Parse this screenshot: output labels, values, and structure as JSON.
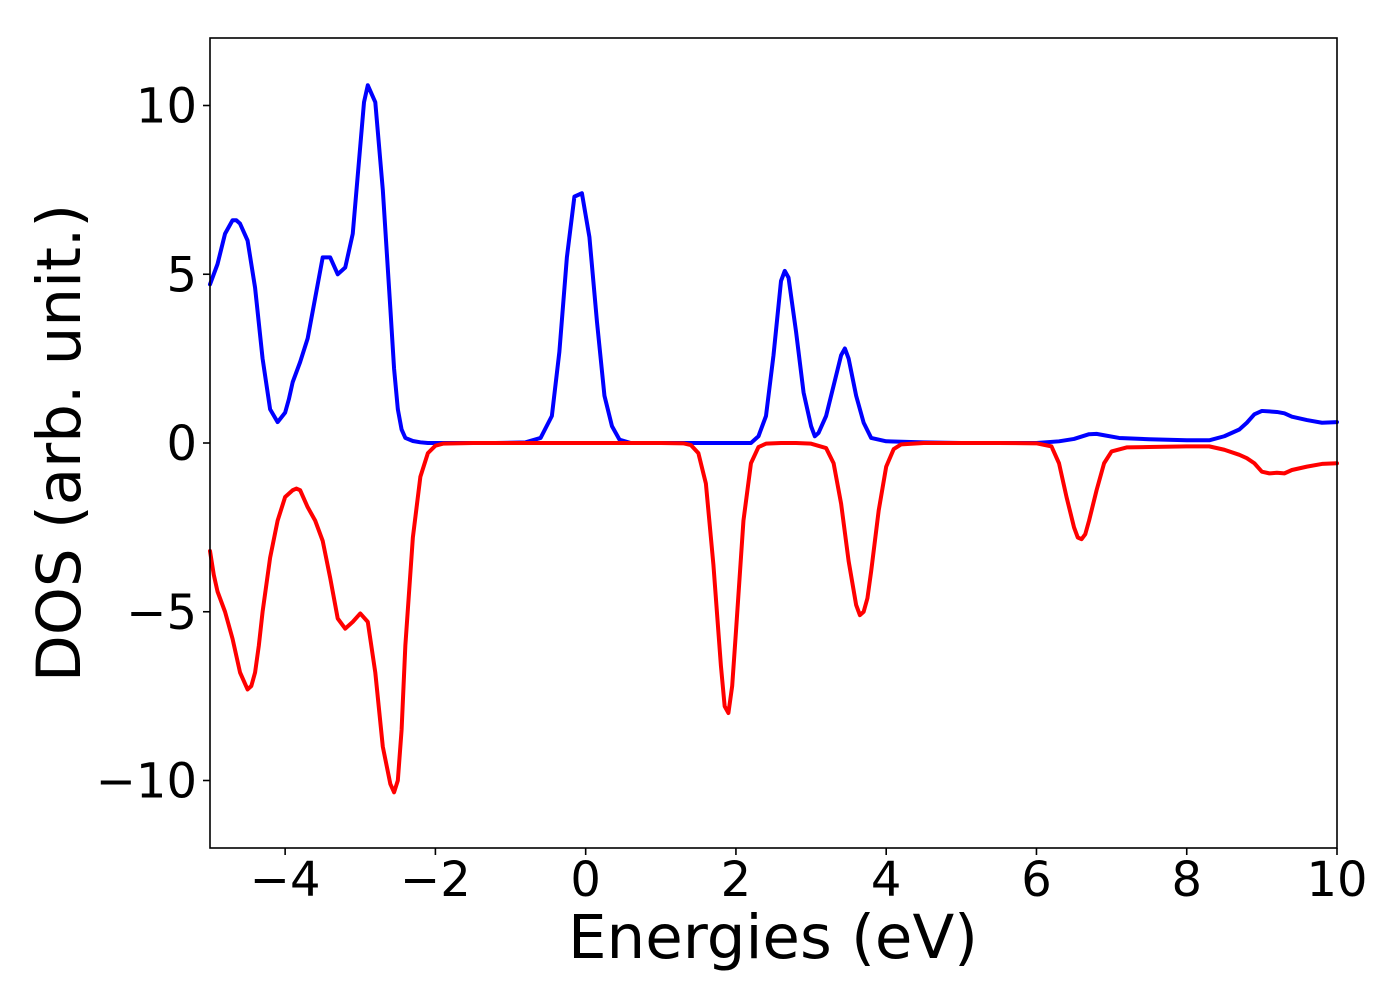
{
  "chart_data": {
    "type": "line",
    "title": "",
    "xlabel": "Energies (eV)",
    "ylabel": "DOS (arb. unit.)",
    "xlim": [
      -5,
      10
    ],
    "ylim": [
      -12,
      12
    ],
    "xticks": [
      -4,
      -2,
      0,
      2,
      4,
      6,
      8,
      10
    ],
    "yticks": [
      -10,
      -5,
      0,
      5,
      10
    ],
    "xtick_labels": [
      "−4",
      "−2",
      "0",
      "2",
      "4",
      "6",
      "8",
      "10"
    ],
    "ytick_labels": [
      "−10",
      "−5",
      "0",
      "5",
      "10"
    ],
    "grid": false,
    "legend": false,
    "series": [
      {
        "color": "#0000ff",
        "x": [
          -5.0,
          -4.9,
          -4.8,
          -4.7,
          -4.65,
          -4.6,
          -4.5,
          -4.4,
          -4.3,
          -4.2,
          -4.1,
          -4.0,
          -3.95,
          -3.9,
          -3.8,
          -3.7,
          -3.6,
          -3.5,
          -3.4,
          -3.3,
          -3.2,
          -3.1,
          -3.0,
          -2.95,
          -2.9,
          -2.8,
          -2.7,
          -2.6,
          -2.55,
          -2.5,
          -2.45,
          -2.4,
          -2.3,
          -2.2,
          -2.1,
          -2.0,
          -1.9,
          -1.7,
          -1.2,
          -0.8,
          -0.6,
          -0.45,
          -0.35,
          -0.25,
          -0.15,
          -0.05,
          0.05,
          0.15,
          0.25,
          0.35,
          0.45,
          0.6,
          0.8,
          1.2,
          1.6,
          2.0,
          2.2,
          2.3,
          2.4,
          2.5,
          2.6,
          2.65,
          2.7,
          2.8,
          2.9,
          3.0,
          3.05,
          3.1,
          3.2,
          3.3,
          3.4,
          3.45,
          3.5,
          3.6,
          3.7,
          3.8,
          4.0,
          4.5,
          5.0,
          5.5,
          6.0,
          6.3,
          6.5,
          6.7,
          6.8,
          6.9,
          7.1,
          7.5,
          8.0,
          8.3,
          8.5,
          8.7,
          8.8,
          8.9,
          9.0,
          9.2,
          9.3,
          9.4,
          9.6,
          9.8,
          10.0
        ],
        "y": [
          4.7,
          5.3,
          6.2,
          6.6,
          6.6,
          6.5,
          6.0,
          4.6,
          2.5,
          1.0,
          0.62,
          0.9,
          1.3,
          1.8,
          2.4,
          3.1,
          4.3,
          5.5,
          5.5,
          5.0,
          5.2,
          6.2,
          8.8,
          10.1,
          10.6,
          10.1,
          7.5,
          4.0,
          2.2,
          1.0,
          0.4,
          0.15,
          0.06,
          0.02,
          0.0,
          0.0,
          0.0,
          0.0,
          0.0,
          0.02,
          0.15,
          0.8,
          2.7,
          5.5,
          7.3,
          7.4,
          6.1,
          3.6,
          1.4,
          0.5,
          0.1,
          0.0,
          0.0,
          0.0,
          0.0,
          0.0,
          0.0,
          0.2,
          0.8,
          2.6,
          4.8,
          5.1,
          4.9,
          3.3,
          1.5,
          0.5,
          0.2,
          0.3,
          0.8,
          1.7,
          2.6,
          2.8,
          2.5,
          1.4,
          0.6,
          0.15,
          0.05,
          0.02,
          0.0,
          0.0,
          0.0,
          0.05,
          0.12,
          0.26,
          0.27,
          0.23,
          0.15,
          0.11,
          0.08,
          0.08,
          0.2,
          0.4,
          0.6,
          0.85,
          0.95,
          0.92,
          0.88,
          0.78,
          0.68,
          0.6,
          0.62
        ]
      },
      {
        "color": "#ff0000",
        "x": [
          -5.0,
          -4.95,
          -4.9,
          -4.8,
          -4.7,
          -4.6,
          -4.5,
          -4.45,
          -4.4,
          -4.35,
          -4.3,
          -4.2,
          -4.1,
          -4.0,
          -3.9,
          -3.85,
          -3.8,
          -3.7,
          -3.6,
          -3.5,
          -3.4,
          -3.3,
          -3.2,
          -3.1,
          -3.0,
          -2.9,
          -2.8,
          -2.7,
          -2.6,
          -2.55,
          -2.5,
          -2.45,
          -2.4,
          -2.3,
          -2.2,
          -2.1,
          -2.0,
          -1.9,
          -1.5,
          -1.0,
          0.0,
          0.5,
          1.0,
          1.3,
          1.4,
          1.5,
          1.6,
          1.7,
          1.8,
          1.85,
          1.9,
          1.95,
          2.0,
          2.1,
          2.2,
          2.3,
          2.4,
          2.6,
          2.8,
          3.0,
          3.2,
          3.3,
          3.4,
          3.5,
          3.6,
          3.65,
          3.7,
          3.75,
          3.8,
          3.9,
          4.0,
          4.1,
          4.2,
          4.5,
          5.0,
          5.5,
          6.0,
          6.2,
          6.3,
          6.4,
          6.5,
          6.55,
          6.6,
          6.65,
          6.7,
          6.8,
          6.9,
          7.0,
          7.2,
          7.5,
          8.0,
          8.3,
          8.5,
          8.7,
          8.8,
          8.9,
          9.0,
          9.1,
          9.2,
          9.3,
          9.4,
          9.6,
          9.8,
          10.0
        ],
        "y": [
          -3.2,
          -3.9,
          -4.4,
          -5.0,
          -5.8,
          -6.8,
          -7.3,
          -7.2,
          -6.8,
          -6.0,
          -5.0,
          -3.4,
          -2.3,
          -1.6,
          -1.4,
          -1.35,
          -1.4,
          -1.9,
          -2.3,
          -2.9,
          -4.0,
          -5.2,
          -5.5,
          -5.3,
          -5.05,
          -5.3,
          -6.8,
          -9.0,
          -10.1,
          -10.35,
          -10.0,
          -8.5,
          -6.0,
          -2.8,
          -1.0,
          -0.3,
          -0.08,
          -0.02,
          0.0,
          0.0,
          0.0,
          0.0,
          0.0,
          -0.01,
          -0.06,
          -0.3,
          -1.2,
          -3.6,
          -6.6,
          -7.8,
          -8.0,
          -7.2,
          -5.6,
          -2.3,
          -0.6,
          -0.12,
          -0.02,
          0.0,
          0.0,
          -0.02,
          -0.15,
          -0.6,
          -1.8,
          -3.5,
          -4.8,
          -5.1,
          -5.0,
          -4.6,
          -3.8,
          -2.0,
          -0.7,
          -0.18,
          -0.04,
          0.0,
          0.0,
          0.0,
          -0.01,
          -0.1,
          -0.6,
          -1.6,
          -2.5,
          -2.8,
          -2.85,
          -2.7,
          -2.3,
          -1.4,
          -0.6,
          -0.25,
          -0.13,
          -0.12,
          -0.1,
          -0.1,
          -0.2,
          -0.35,
          -0.45,
          -0.6,
          -0.85,
          -0.9,
          -0.88,
          -0.9,
          -0.8,
          -0.7,
          -0.62,
          -0.6
        ]
      }
    ]
  }
}
